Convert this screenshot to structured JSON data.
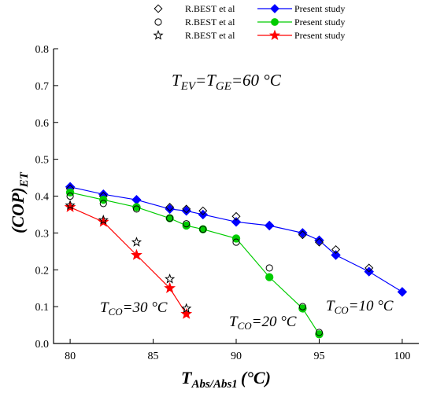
{
  "chart_data": {
    "type": "scatter",
    "xlabel": "T",
    "xlabel_sub": "Abs/Abs1",
    "xlabel_unit": "(°C)",
    "ylabel": "(COP)",
    "ylabel_sub": "ET",
    "xlim": [
      79,
      101
    ],
    "ylim": [
      0.0,
      0.8
    ],
    "x_ticks": [
      80,
      85,
      90,
      95,
      100
    ],
    "y_ticks": [
      0.0,
      0.1,
      0.2,
      0.3,
      0.4,
      0.5,
      0.6,
      0.7,
      0.8
    ],
    "x_tick_labels": [
      "80",
      "85",
      "90",
      "95",
      "100"
    ],
    "y_tick_labels": [
      "0.0",
      "0.1",
      "0.2",
      "0.3",
      "0.4",
      "0.5",
      "0.6",
      "0.7",
      "0.8"
    ],
    "grid": false,
    "legend_position": "top",
    "legend": [
      {
        "label": "R.BEST et al",
        "marker": "diamond",
        "filled": false,
        "color": "#000000"
      },
      {
        "label": "Present study",
        "marker": "diamond",
        "filled": true,
        "color": "#0000ff"
      },
      {
        "label": "R.BEST et al",
        "marker": "circle",
        "filled": false,
        "color": "#000000"
      },
      {
        "label": "Present study",
        "marker": "circle",
        "filled": true,
        "color": "#00cc00"
      },
      {
        "label": "R.BEST et al",
        "marker": "star",
        "filled": false,
        "color": "#000000"
      },
      {
        "label": "Present study",
        "marker": "star",
        "filled": true,
        "color": "#ff0000"
      }
    ],
    "annotation_main": {
      "t1": "T",
      "s1": "EV",
      "t2": "=T",
      "s2": "GE",
      "t3": "=60 °C"
    },
    "curve_labels": [
      {
        "t": "T",
        "s": "CO",
        "rest": "=10 °C"
      },
      {
        "t": "T",
        "s": "CO",
        "rest": "=20 °C"
      },
      {
        "t": "T",
        "s": "CO",
        "rest": "=30 °C"
      }
    ],
    "series": [
      {
        "legend_index": 1,
        "marker": "diamond",
        "color": "#0000ff",
        "line": true,
        "x": [
          80,
          82,
          84,
          86,
          87,
          88,
          90,
          92,
          94,
          95,
          96,
          98,
          100
        ],
        "y": [
          0.425,
          0.405,
          0.39,
          0.365,
          0.36,
          0.35,
          0.33,
          0.32,
          0.3,
          0.28,
          0.24,
          0.195,
          0.14
        ]
      },
      {
        "legend_index": 0,
        "marker": "diamond",
        "color": "#000000",
        "line": false,
        "x": [
          80,
          82,
          84,
          86,
          87,
          88,
          90,
          94,
          95,
          96,
          98
        ],
        "y": [
          0.42,
          0.4,
          0.37,
          0.37,
          0.365,
          0.36,
          0.345,
          0.295,
          0.275,
          0.255,
          0.205
        ]
      },
      {
        "legend_index": 3,
        "marker": "circle",
        "color": "#00cc00",
        "line": true,
        "x": [
          80,
          82,
          84,
          86,
          87,
          88,
          90,
          92,
          94,
          95
        ],
        "y": [
          0.41,
          0.39,
          0.37,
          0.34,
          0.32,
          0.31,
          0.285,
          0.18,
          0.095,
          0.025
        ]
      },
      {
        "legend_index": 2,
        "marker": "circle",
        "color": "#000000",
        "line": false,
        "x": [
          80,
          82,
          84,
          86,
          87,
          88,
          90,
          92,
          94,
          95
        ],
        "y": [
          0.4,
          0.38,
          0.365,
          0.34,
          0.325,
          0.31,
          0.275,
          0.205,
          0.1,
          0.03
        ]
      },
      {
        "legend_index": 5,
        "marker": "star",
        "color": "#ff0000",
        "line": true,
        "x": [
          80,
          82,
          84,
          86,
          87
        ],
        "y": [
          0.37,
          0.33,
          0.24,
          0.15,
          0.08
        ]
      },
      {
        "legend_index": 4,
        "marker": "star",
        "color": "#000000",
        "line": false,
        "x": [
          80,
          82,
          84,
          86,
          87
        ],
        "y": [
          0.375,
          0.335,
          0.275,
          0.175,
          0.095
        ]
      }
    ]
  }
}
